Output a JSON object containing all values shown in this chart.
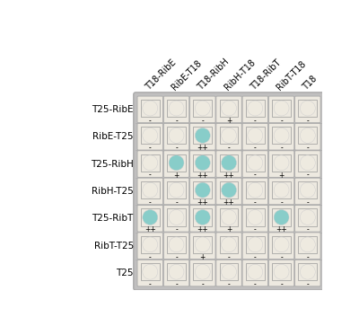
{
  "col_labels": [
    "T18-RibE",
    "RibE-T18",
    "T18-RibH",
    "RibH-T18",
    "T18-RibT",
    "RibT-T18",
    "T18"
  ],
  "row_labels": [
    "T25-RibE",
    "RibE-T25",
    "T25-RibH",
    "RibH-T25",
    "T25-RibT",
    "RibT-T25",
    "T25"
  ],
  "scores": [
    [
      "-",
      "-",
      "-",
      "+",
      "-",
      "-",
      "-"
    ],
    [
      "-",
      "-",
      "++",
      "-",
      "-",
      "-",
      "-"
    ],
    [
      "-",
      "+",
      "++",
      "++",
      "-",
      "+",
      "-"
    ],
    [
      "-",
      "-",
      "++",
      "++",
      "-",
      "-",
      "-"
    ],
    [
      "++",
      "-",
      "++",
      "+",
      "-",
      "++",
      "-"
    ],
    [
      "-",
      "-",
      "+",
      "-",
      "-",
      "-",
      "-"
    ],
    [
      "-",
      "-",
      "-",
      "-",
      "-",
      "-",
      "-"
    ]
  ],
  "teal_cells": [
    [
      false,
      false,
      false,
      false,
      false,
      false,
      false
    ],
    [
      false,
      false,
      true,
      false,
      false,
      false,
      false
    ],
    [
      false,
      true,
      true,
      true,
      false,
      false,
      false
    ],
    [
      false,
      false,
      true,
      true,
      false,
      false,
      false
    ],
    [
      true,
      false,
      true,
      false,
      false,
      true,
      false
    ],
    [
      false,
      false,
      false,
      false,
      false,
      false,
      false
    ],
    [
      false,
      false,
      false,
      false,
      false,
      false,
      false
    ]
  ],
  "bg_color": "#c8c8c8",
  "cell_bg_light": "#ede9e0",
  "cell_bg_teal": "#a8dbd8",
  "cell_border_outer": "#aaaaaa",
  "cell_border_inner": "#999999",
  "disk_white": "#eeeae0",
  "disk_teal": "#88cdc9",
  "grid_bg": "#c0bfbf",
  "score_fontsize": 5.5,
  "row_label_fontsize": 7.5,
  "col_label_fontsize": 7.0,
  "nrows": 7,
  "ncols": 7
}
